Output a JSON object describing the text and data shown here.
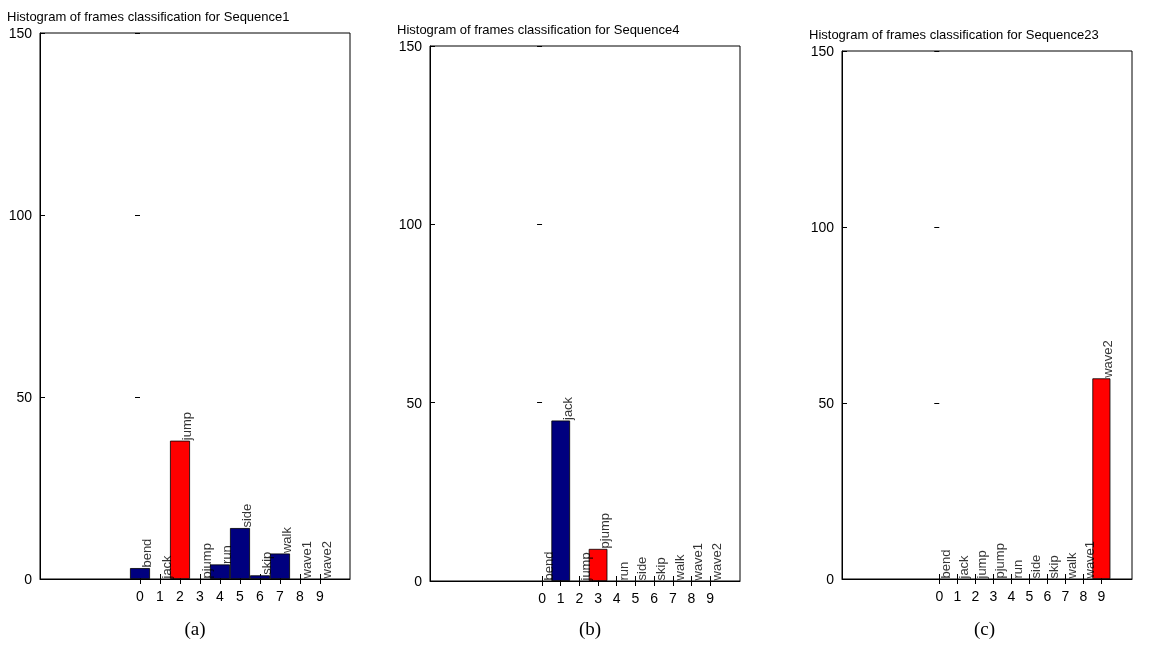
{
  "chart_data": [
    {
      "type": "bar",
      "title": "Histogram of frames classification for Sequence1",
      "x": [
        0,
        1,
        2,
        3,
        4,
        5,
        6,
        7,
        8,
        9
      ],
      "values": [
        3,
        0,
        38,
        0,
        4,
        14,
        1,
        7,
        0,
        0
      ],
      "colors": [
        "#00007f",
        "#00007f",
        "#ff0000",
        "#00007f",
        "#00007f",
        "#00007f",
        "#00007f",
        "#00007f",
        "#00007f",
        "#00007f"
      ],
      "xlim": [
        -5,
        10.5
      ],
      "xticks": [
        0,
        1,
        2,
        3,
        4,
        5,
        6,
        7,
        8,
        9
      ],
      "ylim": [
        0,
        150
      ],
      "yticks": [
        0,
        50,
        100,
        150
      ],
      "grid": false,
      "annotations": [
        {
          "text": "bend",
          "x": 0,
          "y": 3
        },
        {
          "text": "jack",
          "x": 1,
          "y": 0
        },
        {
          "text": "jump",
          "x": 2,
          "y": 38
        },
        {
          "text": "pjump",
          "x": 3,
          "y": 0
        },
        {
          "text": "run",
          "x": 4,
          "y": 4
        },
        {
          "text": "side",
          "x": 5,
          "y": 14
        },
        {
          "text": "skip",
          "x": 6,
          "y": 1
        },
        {
          "text": "walk",
          "x": 7,
          "y": 7
        },
        {
          "text": "wave1",
          "x": 8,
          "y": 0
        },
        {
          "text": "wave2",
          "x": 9,
          "y": 0
        },
        "(a)"
      ]
    },
    {
      "type": "bar",
      "title": "Histogram of frames classification for Sequence4",
      "x": [
        0,
        1,
        2,
        3,
        4,
        5,
        6,
        7,
        8,
        9
      ],
      "values": [
        0,
        45,
        0,
        9,
        0,
        0,
        0,
        0,
        0,
        0
      ],
      "colors": [
        "#00007f",
        "#00007f",
        "#00007f",
        "#ff0000",
        "#00007f",
        "#00007f",
        "#00007f",
        "#00007f",
        "#00007f",
        "#00007f"
      ],
      "xlim": [
        -6,
        10.6
      ],
      "xticks": [
        0,
        1,
        2,
        3,
        4,
        5,
        6,
        7,
        8,
        9
      ],
      "ylim": [
        0,
        150
      ],
      "yticks": [
        0,
        50,
        100,
        150
      ],
      "grid": false,
      "annotations": [
        {
          "text": "bend",
          "x": 0,
          "y": 0
        },
        {
          "text": "jack",
          "x": 1,
          "y": 45
        },
        {
          "text": "jump",
          "x": 2,
          "y": 0
        },
        {
          "text": "pjump",
          "x": 3,
          "y": 9
        },
        {
          "text": "run",
          "x": 4,
          "y": 0
        },
        {
          "text": "side",
          "x": 5,
          "y": 0
        },
        {
          "text": "skip",
          "x": 6,
          "y": 0
        },
        {
          "text": "walk",
          "x": 7,
          "y": 0
        },
        {
          "text": "wave1",
          "x": 8,
          "y": 0
        },
        {
          "text": "wave2",
          "x": 9,
          "y": 0
        },
        "(b)"
      ]
    },
    {
      "type": "bar",
      "title": "Histogram of frames classification for Sequence23",
      "x": [
        0,
        1,
        2,
        3,
        4,
        5,
        6,
        7,
        8,
        9
      ],
      "values": [
        0,
        0,
        0,
        0,
        0,
        0,
        0,
        0,
        0,
        57
      ],
      "colors": [
        "#00007f",
        "#00007f",
        "#00007f",
        "#00007f",
        "#00007f",
        "#00007f",
        "#00007f",
        "#00007f",
        "#00007f",
        "#ff0000"
      ],
      "xlim": [
        -5.4,
        10.7
      ],
      "xticks": [
        0,
        1,
        2,
        3,
        4,
        5,
        6,
        7,
        8,
        9
      ],
      "ylim": [
        0,
        150
      ],
      "yticks": [
        0,
        50,
        100,
        150
      ],
      "grid": false,
      "annotations": [
        {
          "text": "bend",
          "x": 0,
          "y": 0
        },
        {
          "text": "jack",
          "x": 1,
          "y": 0
        },
        {
          "text": "jump",
          "x": 2,
          "y": 0
        },
        {
          "text": "pjump",
          "x": 3,
          "y": 0
        },
        {
          "text": "run",
          "x": 4,
          "y": 0
        },
        {
          "text": "side",
          "x": 5,
          "y": 0
        },
        {
          "text": "skip",
          "x": 6,
          "y": 0
        },
        {
          "text": "walk",
          "x": 7,
          "y": 0
        },
        {
          "text": "wave1",
          "x": 8,
          "y": 0
        },
        {
          "text": "wave2",
          "x": 9,
          "y": 57
        },
        "(c)"
      ]
    }
  ]
}
